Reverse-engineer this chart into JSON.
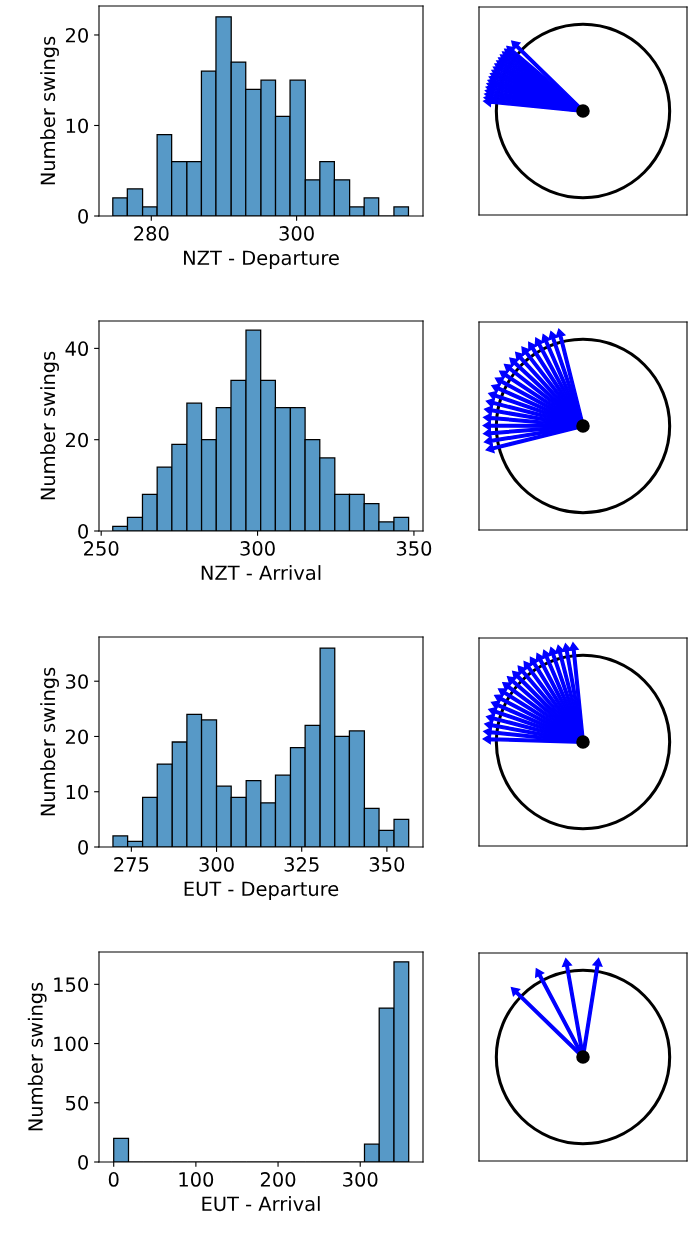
{
  "chart_data": [
    {
      "type": "histogram",
      "xlabel": "NZT - Departure",
      "ylabel": "Number swings",
      "color": "#5799c7",
      "bins": [
        274.7,
        276.7,
        278.8,
        280.8,
        282.8,
        284.9,
        286.9,
        288.9,
        291.0,
        293.0,
        295.1,
        297.1,
        299.1,
        301.2,
        303.2,
        305.2,
        307.3,
        309.3,
        311.3,
        313.4,
        315.4
      ],
      "values": [
        2,
        3,
        1,
        9,
        6,
        6,
        16,
        22,
        17,
        14,
        15,
        11,
        15,
        4,
        6,
        4,
        1,
        2,
        0,
        1
      ],
      "xlim": [
        272.8,
        317.4
      ],
      "xticks": [
        280,
        300
      ],
      "ylim": [
        0,
        23.2
      ],
      "yticks": [
        0,
        10,
        20
      ],
      "grid": false
    },
    {
      "type": "histogram",
      "xlabel": "NZT - Arrival",
      "ylabel": "Number swings",
      "color": "#5799c7",
      "bins": [
        253.7,
        258.4,
        263.2,
        267.9,
        272.6,
        277.4,
        282.1,
        286.8,
        291.5,
        296.3,
        301.0,
        305.7,
        310.5,
        315.2,
        319.9,
        324.7,
        329.4,
        334.1,
        338.8,
        343.6,
        348.3
      ],
      "values": [
        1,
        3,
        8,
        14,
        19,
        28,
        20,
        27,
        33,
        44,
        33,
        27,
        27,
        20,
        16,
        8,
        8,
        6,
        2,
        3
      ],
      "xlim": [
        249.3,
        352.9
      ],
      "xticks": [
        250,
        300,
        350
      ],
      "ylim": [
        0,
        46.0
      ],
      "yticks": [
        0,
        20,
        40
      ],
      "grid": false
    },
    {
      "type": "histogram",
      "xlabel": "EUT - Departure",
      "ylabel": "Number swings",
      "color": "#5799c7",
      "bins": [
        269.6,
        273.9,
        278.3,
        282.6,
        287.0,
        291.3,
        295.6,
        300.0,
        304.3,
        308.7,
        313.0,
        317.3,
        321.7,
        326.0,
        330.4,
        334.7,
        339.0,
        343.4,
        347.7,
        352.1,
        356.4
      ],
      "values": [
        2,
        1,
        9,
        15,
        19,
        24,
        23,
        11,
        9,
        12,
        8,
        13,
        18,
        22,
        36,
        20,
        21,
        7,
        3,
        5
      ],
      "xlim": [
        265.5,
        360.6
      ],
      "xticks": [
        275,
        300,
        325,
        350
      ],
      "ylim": [
        0,
        38.0
      ],
      "yticks": [
        0,
        10,
        20,
        30
      ],
      "grid": false
    },
    {
      "type": "histogram",
      "xlabel": "EUT - Arrival",
      "ylabel": "Number swings",
      "color": "#5799c7",
      "bins": [
        0.0,
        18.0,
        35.9,
        53.9,
        71.8,
        89.8,
        107.7,
        125.7,
        143.6,
        161.6,
        179.5,
        197.5,
        215.4,
        233.4,
        251.3,
        269.3,
        287.2,
        305.2,
        323.1,
        341.1,
        359.0
      ],
      "values": [
        20,
        0,
        0,
        0,
        0,
        0,
        0,
        0,
        0,
        0,
        0,
        0,
        0,
        0,
        0,
        0,
        0,
        15,
        130,
        169
      ],
      "xlim": [
        -17.9,
        376.4
      ],
      "xticks": [
        0,
        100,
        200,
        300
      ],
      "ylim": [
        0,
        177.3
      ],
      "yticks": [
        0,
        50,
        100,
        150
      ],
      "grid": false
    }
  ]
}
